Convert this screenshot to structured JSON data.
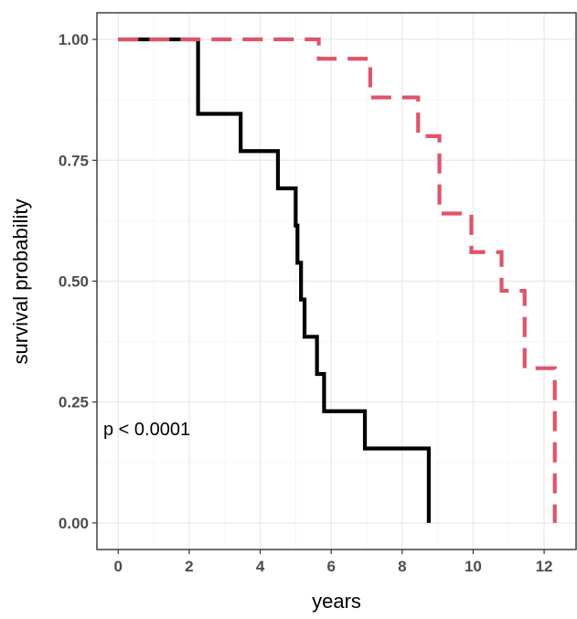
{
  "chart_data": {
    "type": "line",
    "title": "",
    "xlabel": "years",
    "ylabel": "survival probability",
    "xlim": [
      -0.6,
      12.9
    ],
    "ylim": [
      -0.055,
      1.055
    ],
    "x_ticks": [
      0,
      2,
      4,
      6,
      8,
      10,
      12
    ],
    "x_tick_labels": [
      "0",
      "2",
      "4",
      "6",
      "8",
      "10",
      "12"
    ],
    "y_ticks": [
      0,
      0.25,
      0.5,
      0.75,
      1
    ],
    "y_tick_labels": [
      "0.00",
      "0.25",
      "0.50",
      "0.75",
      "1.00"
    ],
    "grid": true,
    "legend": "none",
    "annotation": "p < 0.0001",
    "series": [
      {
        "color": "#000000",
        "dash": "solid",
        "x": [
          0,
          2.25,
          3.45,
          4.5,
          5.0,
          5.05,
          5.15,
          5.25,
          5.6,
          5.8,
          6.95,
          8.75
        ],
        "y": [
          1.0,
          0.846,
          0.769,
          0.692,
          0.615,
          0.538,
          0.462,
          0.385,
          0.308,
          0.231,
          0.154,
          0.077
        ],
        "end_x": 8.75,
        "end_y": 0.0
      },
      {
        "color": "#DF536B",
        "dash": "dashed",
        "x": [
          0,
          5.65,
          7.1,
          8.45,
          9.05,
          9.95,
          10.8,
          11.45,
          12.3
        ],
        "y": [
          1.0,
          0.96,
          0.88,
          0.8,
          0.64,
          0.56,
          0.48,
          0.32,
          0.16
        ],
        "end_x": 12.3,
        "end_y": 0.0
      }
    ]
  }
}
